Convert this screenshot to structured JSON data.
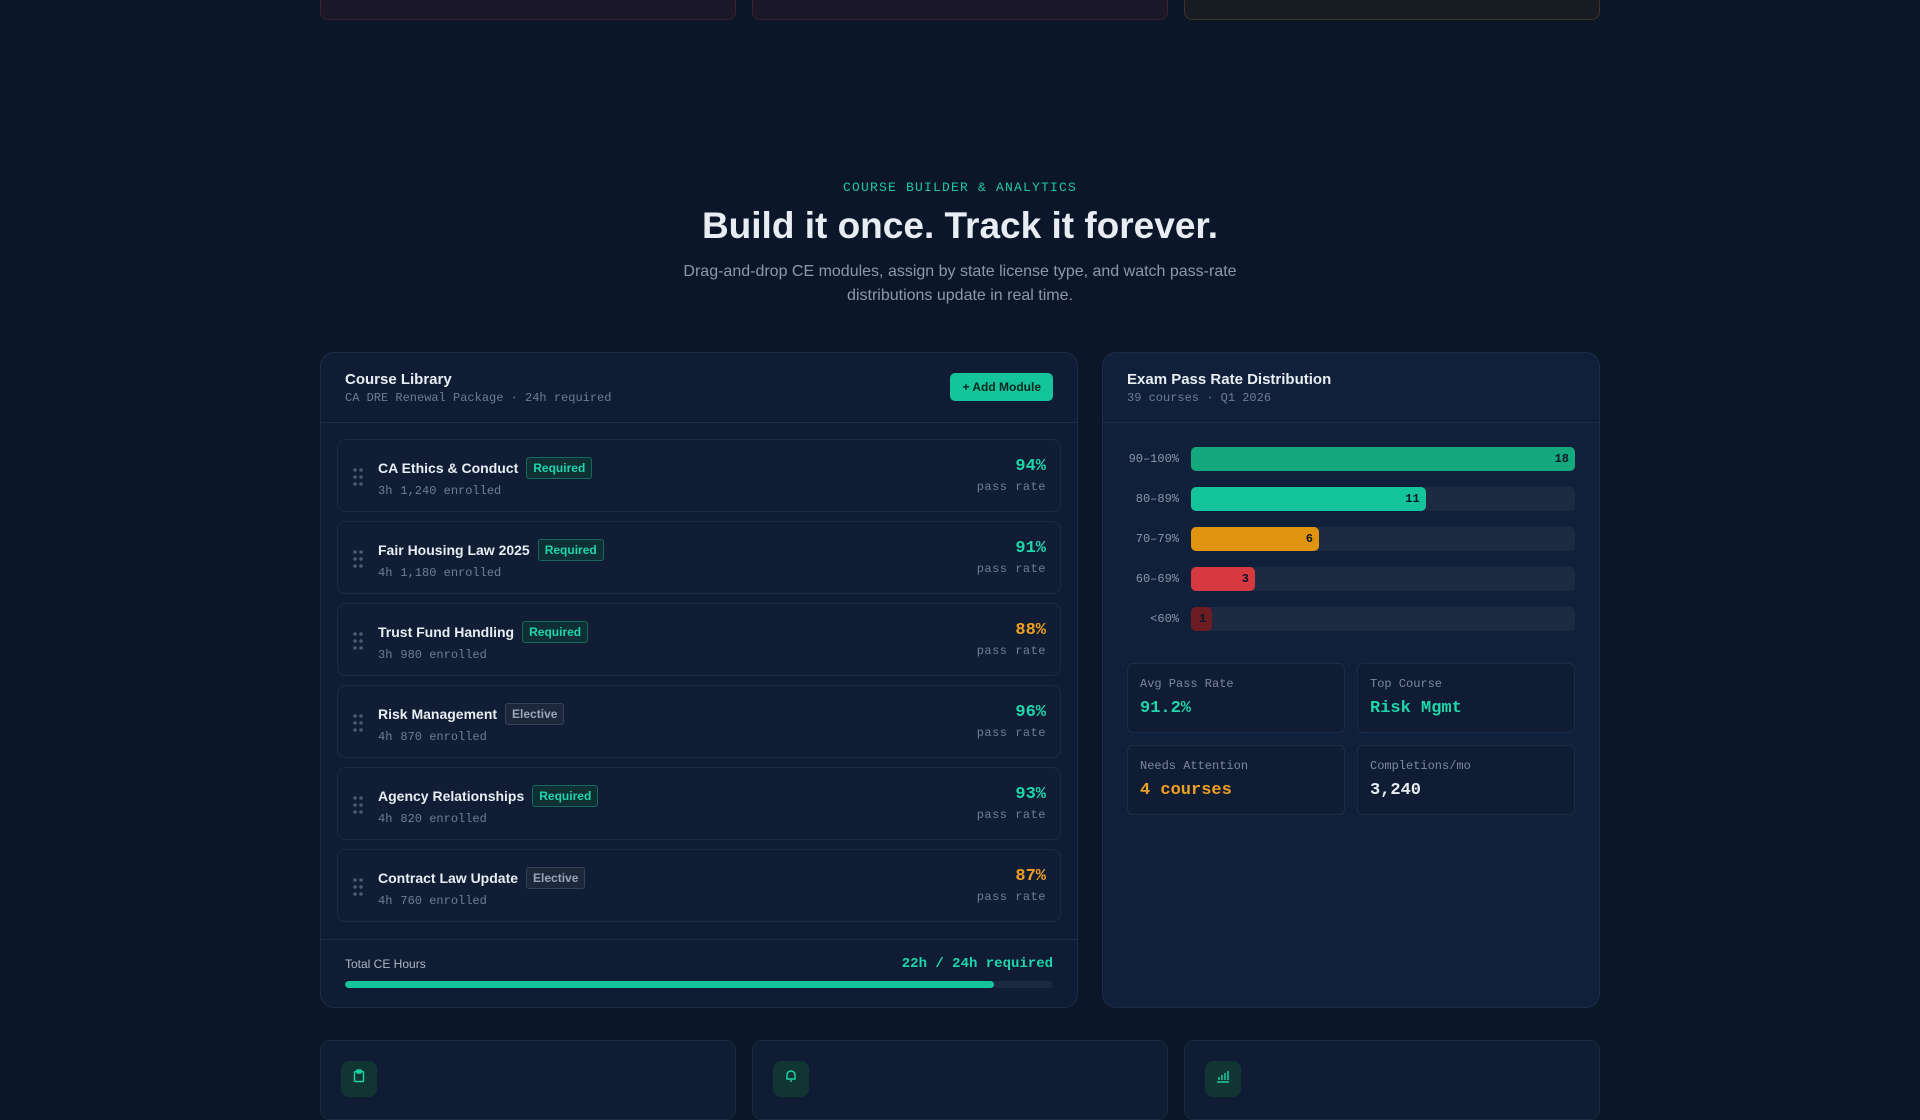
{
  "hero": {
    "eyebrow": "COURSE BUILDER & ANALYTICS",
    "title": "Build it once. Track it forever.",
    "subtitle": "Drag-and-drop CE modules, assign by state license type, and watch pass-rate distributions update in real time."
  },
  "library": {
    "title": "Course Library",
    "subtitle": "CA DRE Renewal Package · 24h required",
    "add_button": "+ Add Module",
    "rate_label": "pass rate",
    "courses": [
      {
        "name": "CA Ethics & Conduct",
        "tag": "Required",
        "hours": "3h",
        "enrolled": "1,240 enrolled",
        "rate": "94%",
        "rate_color": "#1fd6aa"
      },
      {
        "name": "Fair Housing Law 2025",
        "tag": "Required",
        "hours": "4h",
        "enrolled": "1,180 enrolled",
        "rate": "91%",
        "rate_color": "#1fd6aa"
      },
      {
        "name": "Trust Fund Handling",
        "tag": "Required",
        "hours": "3h",
        "enrolled": "980 enrolled",
        "rate": "88%",
        "rate_color": "#f0a020"
      },
      {
        "name": "Risk Management",
        "tag": "Elective",
        "hours": "4h",
        "enrolled": "870 enrolled",
        "rate": "96%",
        "rate_color": "#1fd6aa"
      },
      {
        "name": "Agency Relationships",
        "tag": "Required",
        "hours": "4h",
        "enrolled": "820 enrolled",
        "rate": "93%",
        "rate_color": "#1fd6aa"
      },
      {
        "name": "Contract Law Update",
        "tag": "Elective",
        "hours": "4h",
        "enrolled": "760 enrolled",
        "rate": "87%",
        "rate_color": "#f0a020"
      }
    ],
    "footer": {
      "label": "Total CE Hours",
      "value": "22h / 24h required",
      "progress": 0.917
    }
  },
  "distribution": {
    "title": "Exam Pass Rate Distribution",
    "subtitle": "39 courses · Q1 2026",
    "max": 18,
    "buckets": [
      {
        "label": "90–100%",
        "count": 18,
        "color": "#14a87c"
      },
      {
        "label": "80–89%",
        "count": 11,
        "color": "#14c49b"
      },
      {
        "label": "70–79%",
        "count": 6,
        "color": "#e0930f"
      },
      {
        "label": "60–69%",
        "count": 3,
        "color": "#d6393f"
      },
      {
        "label": "<60%",
        "count": 1,
        "color": "#6e1c24"
      }
    ],
    "stats": [
      {
        "label": "Avg Pass Rate",
        "value": "91.2%",
        "color": "#1fd6aa"
      },
      {
        "label": "Top Course",
        "value": "Risk Mgmt",
        "color": "#1fd6aa"
      },
      {
        "label": "Needs Attention",
        "value": "4 courses",
        "color": "#f0a020"
      },
      {
        "label": "Completions/mo",
        "value": "3,240",
        "color": "#e8edf4"
      }
    ]
  },
  "colors": {
    "accent": "#14c49b",
    "warning": "#f0a020",
    "danger": "#d6393f",
    "background": "#0b1628"
  }
}
